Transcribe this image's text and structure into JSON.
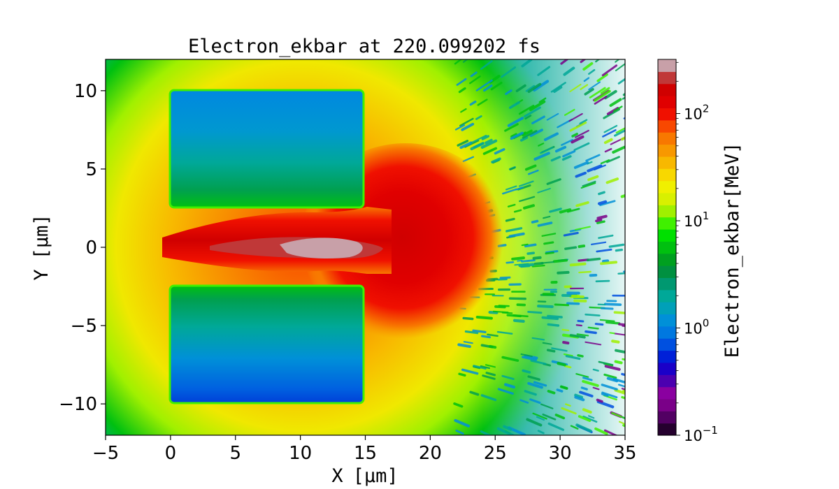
{
  "chart_data": {
    "type": "heatmap",
    "title": "Electron_ekbar at 220.099202 fs",
    "xlabel": "X",
    "xlabel_unit": "[μm]",
    "ylabel": "Y",
    "ylabel_unit": "[μm]",
    "xlim": [
      -5,
      35
    ],
    "ylim": [
      -12,
      12
    ],
    "x_ticks": [
      -5,
      0,
      5,
      10,
      15,
      20,
      25,
      30,
      35
    ],
    "x_tick_labels": [
      "−5",
      "0",
      "5",
      "10",
      "15",
      "20",
      "25",
      "30",
      "35"
    ],
    "y_ticks": [
      10,
      5,
      0,
      -5,
      -10
    ],
    "y_tick_labels": [
      "10",
      "5",
      "0",
      "−5",
      "−10"
    ],
    "colorbar": {
      "label": "Electron_ekbar[MeV]",
      "scale": "log",
      "range": [
        0.1,
        320
      ],
      "ticks": [
        0.1,
        1,
        10,
        100
      ],
      "tick_bases": [
        "10",
        "10",
        "10",
        "10"
      ],
      "tick_exponents": [
        "−1",
        "0",
        "1",
        "2"
      ],
      "levels": [
        "#25002e",
        "#520063",
        "#7a0088",
        "#8a00a0",
        "#4b00b0",
        "#1a00c8",
        "#0020d8",
        "#0050e0",
        "#0078e0",
        "#0090d8",
        "#00a0b8",
        "#00a898",
        "#009870",
        "#009040",
        "#00a020",
        "#00c010",
        "#00e000",
        "#40f000",
        "#a0f000",
        "#d8f000",
        "#f0f000",
        "#f8d800",
        "#f8b800",
        "#f89800",
        "#f87800",
        "#f84800",
        "#f01000",
        "#e00000",
        "#d00000",
        "#c03838",
        "#c8a0a8"
      ]
    },
    "regions": [
      {
        "name": "upper-target",
        "x": [
          0,
          15
        ],
        "y": [
          2.5,
          10
        ],
        "value_mev": 1.2
      },
      {
        "name": "lower-target",
        "x": [
          0,
          15
        ],
        "y": [
          -10,
          -2.5
        ],
        "value_mev": 1.0
      },
      {
        "name": "channel",
        "x": [
          0,
          15
        ],
        "y": [
          -2,
          2
        ],
        "value_mev": 150
      },
      {
        "name": "channel-core",
        "x": [
          5,
          16
        ],
        "y": [
          -0.6,
          0.6
        ],
        "value_mev": 300
      },
      {
        "name": "rear-plume",
        "x": [
          15,
          22
        ],
        "y": [
          -5,
          5
        ],
        "value_mev": 120
      },
      {
        "name": "background-halo",
        "x": [
          -5,
          27
        ],
        "y": [
          -12,
          12
        ],
        "value_mev": 35
      },
      {
        "name": "outer-ring",
        "x": [
          22,
          30
        ],
        "y": [
          -12,
          12
        ],
        "value_mev": 8
      },
      {
        "name": "sparse-far-field",
        "x": [
          27,
          35
        ],
        "y": [
          -12,
          12
        ],
        "value_mev": 2
      }
    ]
  }
}
